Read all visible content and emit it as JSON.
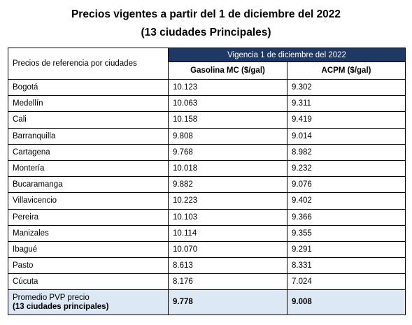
{
  "title_line1": "Precios vigentes a partir del 1 de diciembre del 2022",
  "title_line2": "(13 ciudades Principales)",
  "table": {
    "ref_header": "Precios de referencia por ciudades",
    "vigencia_header": "Vigencia 1 de diciembre del 2022",
    "col_gasolina": "Gasolina MC ($/gal)",
    "col_acpm": "ACPM ($/gal)",
    "rows": [
      {
        "city": "Bogotá",
        "gasolina": "10.123",
        "acpm": "9.302"
      },
      {
        "city": "Medellín",
        "gasolina": "10.063",
        "acpm": "9.311"
      },
      {
        "city": "Cali",
        "gasolina": "10.158",
        "acpm": "9.419"
      },
      {
        "city": "Barranquilla",
        "gasolina": "9.808",
        "acpm": "9.014"
      },
      {
        "city": "Cartagena",
        "gasolina": "9.768",
        "acpm": "8.982"
      },
      {
        "city": "Montería",
        "gasolina": "10.018",
        "acpm": "9.232"
      },
      {
        "city": "Bucaramanga",
        "gasolina": "9.882",
        "acpm": "9.076"
      },
      {
        "city": "Villavicencio",
        "gasolina": "10.223",
        "acpm": "9.402"
      },
      {
        "city": "Pereira",
        "gasolina": "10.103",
        "acpm": "9.366"
      },
      {
        "city": "Manizales",
        "gasolina": "10.114",
        "acpm": "9.355"
      },
      {
        "city": "Ibagué",
        "gasolina": "10.070",
        "acpm": "9.291"
      },
      {
        "city": "Pasto",
        "gasolina": "8.613",
        "acpm": "8.331"
      },
      {
        "city": "Cúcuta",
        "gasolina": "8.176",
        "acpm": "7.024"
      }
    ],
    "average": {
      "label_line1": "Promedio PVP precio",
      "label_line2": "(13 ciudades principales)",
      "gasolina": "9.778",
      "acpm": "9.008"
    }
  }
}
